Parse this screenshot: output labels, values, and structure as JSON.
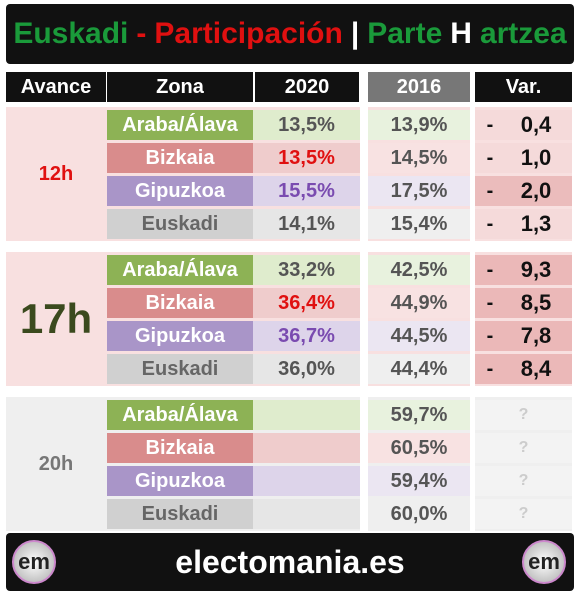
{
  "header": {
    "title": [
      {
        "text": "Euskadi",
        "color": "#1a9a3a"
      },
      {
        "text": "-",
        "color": "#e01010"
      },
      {
        "text": "Participación",
        "color": "#e01010"
      },
      {
        "text": "|",
        "color": "#ffffff"
      },
      {
        "text": "Parte",
        "color": "#1a9a3a"
      },
      {
        "text": "H",
        "color": "#ffffff"
      },
      {
        "text": "artzea",
        "color": "#1a9a3a"
      }
    ]
  },
  "columns": [
    "Avance",
    "Zona",
    "2020",
    "2016",
    "Var."
  ],
  "sections": [
    {
      "label": "12h",
      "rows": [
        {
          "zone": "Araba/Álava",
          "v2020": "13,5%",
          "v2016": "13,9%",
          "sign": "-",
          "var": "0,4"
        },
        {
          "zone": "Bizkaia",
          "v2020": "13,5%",
          "v2016": "14,5%",
          "sign": "-",
          "var": "1,0"
        },
        {
          "zone": "Gipuzkoa",
          "v2020": "15,5%",
          "v2016": "17,5%",
          "sign": "-",
          "var": "2,0"
        },
        {
          "zone": "Euskadi",
          "v2020": "14,1%",
          "v2016": "15,4%",
          "sign": "-",
          "var": "1,3"
        }
      ]
    },
    {
      "label": "17h",
      "rows": [
        {
          "zone": "Araba/Álava",
          "v2020": "33,2%",
          "v2016": "42,5%",
          "sign": "-",
          "var": "9,3"
        },
        {
          "zone": "Bizkaia",
          "v2020": "36,4%",
          "v2016": "44,9%",
          "sign": "-",
          "var": "8,5"
        },
        {
          "zone": "Gipuzkoa",
          "v2020": "36,7%",
          "v2016": "44,5%",
          "sign": "-",
          "var": "7,8"
        },
        {
          "zone": "Euskadi",
          "v2020": "36,0%",
          "v2016": "44,4%",
          "sign": "-",
          "var": "8,4"
        }
      ]
    },
    {
      "label": "20h",
      "rows": [
        {
          "zone": "Araba/Álava",
          "v2016": "59,7%",
          "var": "?"
        },
        {
          "zone": "Bizkaia",
          "v2016": "60,5%",
          "var": "?"
        },
        {
          "zone": "Gipuzkoa",
          "v2016": "59,4%",
          "var": "?"
        },
        {
          "zone": "Euskadi",
          "v2016": "60,0%",
          "var": "?"
        }
      ]
    }
  ],
  "footer": {
    "site": "electomania.es",
    "logo": "em"
  }
}
